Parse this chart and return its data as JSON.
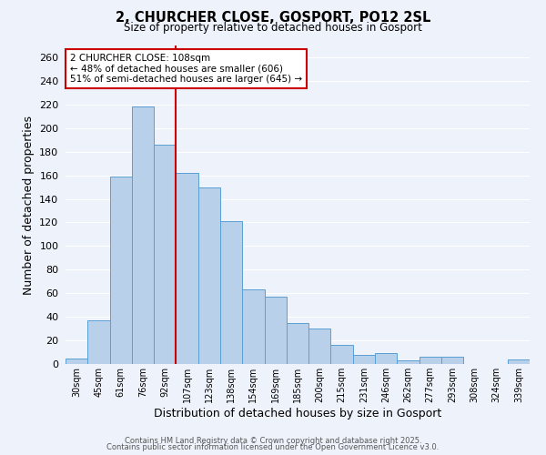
{
  "title": "2, CHURCHER CLOSE, GOSPORT, PO12 2SL",
  "subtitle": "Size of property relative to detached houses in Gosport",
  "xlabel": "Distribution of detached houses by size in Gosport",
  "ylabel": "Number of detached properties",
  "bar_color": "#b8d0ea",
  "bar_edge_color": "#5a9fd4",
  "categories": [
    "30sqm",
    "45sqm",
    "61sqm",
    "76sqm",
    "92sqm",
    "107sqm",
    "123sqm",
    "138sqm",
    "154sqm",
    "169sqm",
    "185sqm",
    "200sqm",
    "215sqm",
    "231sqm",
    "246sqm",
    "262sqm",
    "277sqm",
    "293sqm",
    "308sqm",
    "324sqm",
    "339sqm"
  ],
  "values": [
    5,
    37,
    159,
    218,
    186,
    162,
    150,
    121,
    63,
    57,
    35,
    30,
    16,
    8,
    9,
    3,
    6,
    6,
    0,
    0,
    4
  ],
  "vline_index": 5,
  "vline_color": "#cc0000",
  "annotation_text": "2 CHURCHER CLOSE: 108sqm\n← 48% of detached houses are smaller (606)\n51% of semi-detached houses are larger (645) →",
  "annotation_box_color": "#ffffff",
  "annotation_box_edge": "#cc0000",
  "ylim": [
    0,
    270
  ],
  "yticks": [
    0,
    20,
    40,
    60,
    80,
    100,
    120,
    140,
    160,
    180,
    200,
    220,
    240,
    260
  ],
  "footer1": "Contains HM Land Registry data © Crown copyright and database right 2025.",
  "footer2": "Contains public sector information licensed under the Open Government Licence v3.0.",
  "background_color": "#eef2fb",
  "grid_color": "#ffffff"
}
